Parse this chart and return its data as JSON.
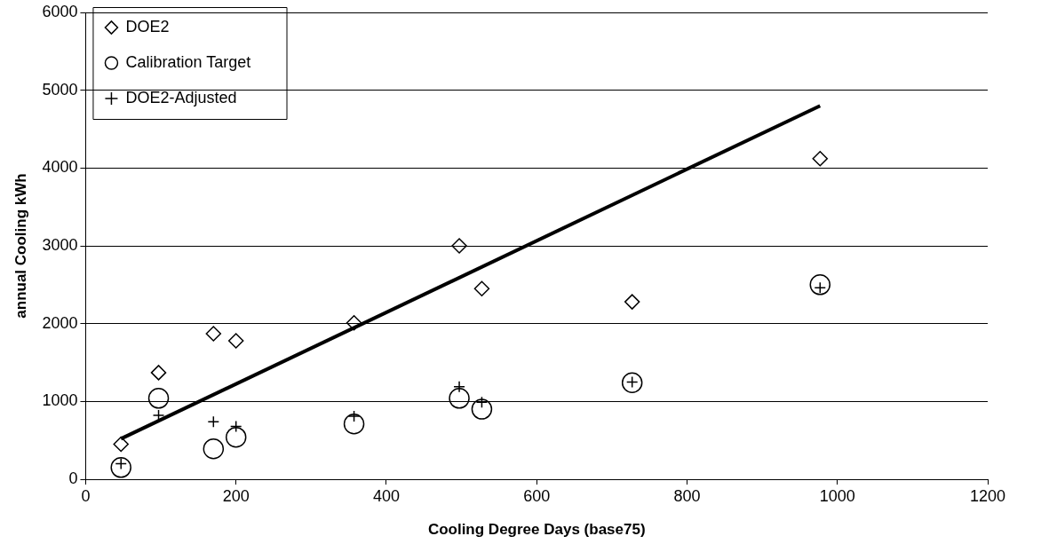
{
  "chart_data": {
    "type": "scatter",
    "xlabel": "Cooling Degree Days (base75)",
    "ylabel": "annual Cooling kWh",
    "xlim": [
      0,
      1200
    ],
    "xticks": [
      0,
      200,
      400,
      600,
      800,
      1000,
      1200
    ],
    "ylim": [
      0,
      6000
    ],
    "yticks": [
      0,
      1000,
      2000,
      3000,
      4000,
      5000,
      6000
    ],
    "grid": "y",
    "legend": "top left",
    "series": [
      {
        "name": "DOE2",
        "color": "#000000",
        "marker": "diamond",
        "x": [
          47,
          97,
          170,
          200,
          357,
          497,
          527,
          727,
          977
        ],
        "values": [
          450,
          1370,
          1870,
          1780,
          2010,
          3000,
          2450,
          2280,
          4120
        ]
      },
      {
        "name": "Calibration Target",
        "color": "#000000",
        "marker": "circle",
        "x": [
          47,
          97,
          170,
          200,
          357,
          497,
          527,
          727,
          977
        ],
        "values": [
          150,
          1040,
          390,
          540,
          710,
          1040,
          900,
          1240,
          2500
        ]
      },
      {
        "name": "DOE2-Adjusted",
        "color": "#000000",
        "marker": "cross",
        "x": [
          47,
          97,
          170,
          200,
          357,
          497,
          527,
          727,
          977
        ],
        "values": [
          200,
          820,
          740,
          680,
          810,
          1190,
          990,
          1250,
          2460
        ]
      },
      {
        "type": "line",
        "color": "#000000",
        "marker": "none",
        "line_style": "solid",
        "x": [
          47,
          977
        ],
        "values": [
          520,
          4800
        ]
      }
    ]
  }
}
